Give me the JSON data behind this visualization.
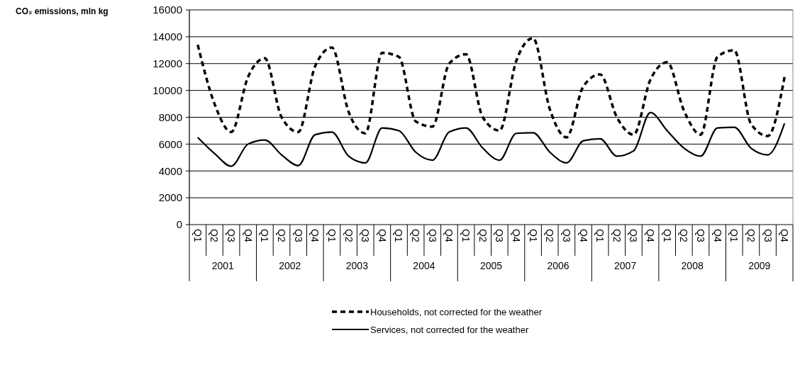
{
  "chart_data": {
    "type": "line",
    "categories": [
      "Q1",
      "Q2",
      "Q3",
      "Q4",
      "Q1",
      "Q2",
      "Q3",
      "Q4",
      "Q1",
      "Q2",
      "Q3",
      "Q4",
      "Q1",
      "Q2",
      "Q3",
      "Q4",
      "Q1",
      "Q2",
      "Q3",
      "Q4",
      "Q1",
      "Q2",
      "Q3",
      "Q4",
      "Q1",
      "Q2",
      "Q3",
      "Q4",
      "Q1",
      "Q2",
      "Q3",
      "Q4",
      "Q1",
      "Q2",
      "Q3",
      "Q4"
    ],
    "annotations": [
      "CO₂ emissions, mln kg",
      "2001",
      "2002",
      "2003",
      "2004",
      "2005",
      "2006",
      "2007",
      "2008",
      "2009"
    ],
    "series": [
      {
        "name": "Households, not corrected for the weather",
        "color": "#000000",
        "line_style": "dashed",
        "values": [
          13400,
          9000,
          6900,
          11000,
          12400,
          8000,
          6900,
          11800,
          13200,
          8400,
          6800,
          12800,
          12500,
          7700,
          7300,
          12000,
          12700,
          8000,
          7000,
          12200,
          13900,
          8600,
          6500,
          10300,
          11200,
          8000,
          6700,
          10800,
          12100,
          8500,
          6700,
          12500,
          13000,
          7500,
          6600,
          11000
        ]
      },
      {
        "name": "Services, not corrected for the weather",
        "color": "#000000",
        "line_style": "solid",
        "values": [
          6500,
          5300,
          4350,
          6000,
          6300,
          5200,
          4400,
          6700,
          6900,
          5100,
          4600,
          7200,
          7000,
          5400,
          4800,
          6900,
          7200,
          5700,
          4800,
          6800,
          6850,
          5400,
          4600,
          6250,
          6400,
          5100,
          5500,
          8350,
          7000,
          5700,
          5100,
          7200,
          7250,
          5700,
          5200,
          7550
        ]
      }
    ],
    "ylim": [
      0,
      16000
    ],
    "yticks": [
      0,
      2000,
      4000,
      6000,
      8000,
      10000,
      12000,
      14000,
      16000
    ],
    "grid": "y",
    "legend": "bottom",
    "marker": "none"
  }
}
